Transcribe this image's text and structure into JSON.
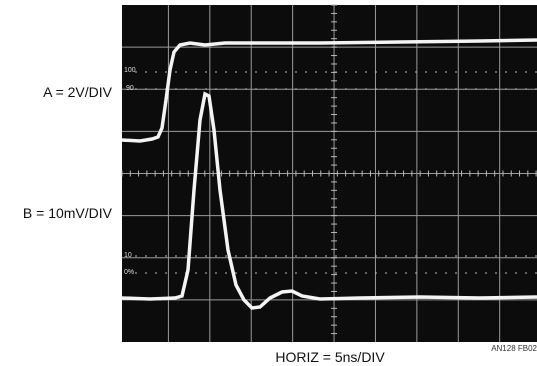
{
  "labels": {
    "channel_a": "A = 2V/DIV",
    "channel_b": "B = 10mV/DIV",
    "horizontal": "HORIZ = 5ns/DIV",
    "figure_id": "AN128 FB02"
  },
  "graticule": {
    "top_100": "100",
    "top_90": "90",
    "bottom_10": "10",
    "bottom_0": "0%"
  }
}
